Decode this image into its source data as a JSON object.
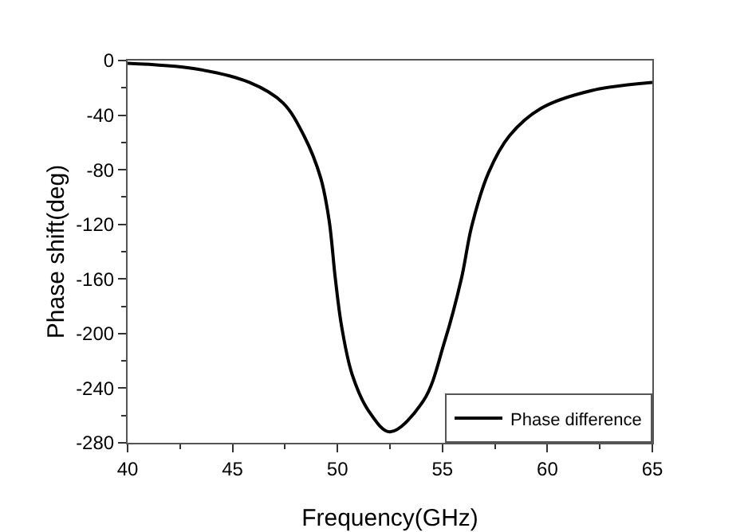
{
  "chart_data": {
    "type": "line",
    "xlabel": "Frequency(GHz)",
    "ylabel": "Phase shift(deg)",
    "xlim": [
      40,
      65
    ],
    "xticks": [
      40,
      45,
      50,
      55,
      60,
      65
    ],
    "ylim": [
      -280,
      0
    ],
    "yticks": [
      0,
      -40,
      -80,
      -120,
      -160,
      -200,
      -240,
      -280
    ],
    "grid": false,
    "legend": "bottom right",
    "marker": "none",
    "line_style": "solid",
    "series": [
      {
        "name": "Phase difference",
        "color": "#000000",
        "x": [
          40,
          43.2,
          45.8,
          47.4,
          48.4,
          49.2,
          49.6,
          49.9,
          50.2,
          50.7,
          51.5,
          52.5,
          54.1,
          55.1,
          55.9,
          56.4,
          57.2,
          58.2,
          59.7,
          62.1,
          65
        ],
        "values": [
          -2,
          -6,
          -16,
          -31,
          -55,
          -86,
          -117,
          -160,
          -195,
          -230,
          -257,
          -272,
          -249,
          -206,
          -160,
          -121,
          -82,
          -55,
          -35,
          -22,
          -16
        ]
      }
    ]
  }
}
